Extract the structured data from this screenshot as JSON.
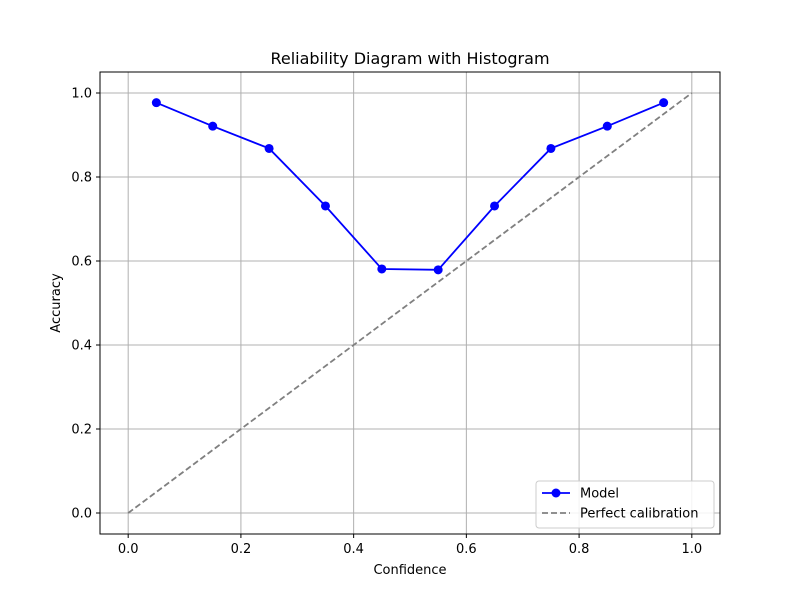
{
  "chart_data": {
    "type": "line",
    "title": "Reliability Diagram with Histogram",
    "xlabel": "Confidence",
    "ylabel": "Accuracy",
    "xlim": [
      -0.05,
      1.05
    ],
    "ylim": [
      -0.05,
      1.05
    ],
    "xticks": [
      0.0,
      0.2,
      0.4,
      0.6,
      0.8,
      1.0
    ],
    "yticks": [
      0.0,
      0.2,
      0.4,
      0.6,
      0.8,
      1.0
    ],
    "xtick_labels": [
      "0.0",
      "0.2",
      "0.4",
      "0.6",
      "0.8",
      "1.0"
    ],
    "ytick_labels": [
      "0.0",
      "0.2",
      "0.4",
      "0.6",
      "0.8",
      "1.0"
    ],
    "grid": true,
    "legend_position": "lower-right",
    "series": [
      {
        "name": "Model",
        "style": "line-with-markers",
        "color": "#0000ff",
        "x": [
          0.05,
          0.15,
          0.25,
          0.35,
          0.45,
          0.55,
          0.65,
          0.75,
          0.85,
          0.95
        ],
        "y": [
          0.977,
          0.921,
          0.868,
          0.731,
          0.581,
          0.579,
          0.731,
          0.868,
          0.921,
          0.977
        ]
      },
      {
        "name": "Perfect calibration",
        "style": "dashed",
        "color": "#808080",
        "x": [
          0.0,
          1.0
        ],
        "y": [
          0.0,
          1.0
        ]
      }
    ]
  }
}
